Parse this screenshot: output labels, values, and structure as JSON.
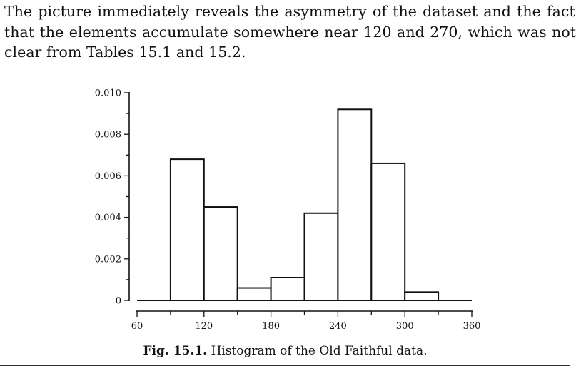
{
  "paragraph": {
    "lines": [
      "The picture immediately reveals the asymmetry of the dataset and the fact",
      "that the elements accumulate somewhere near 120 and 270, which was not",
      "clear from Tables 15.1 and 15.2."
    ]
  },
  "caption": {
    "label": "Fig. 15.1.",
    "text": " Histogram of the Old Faithful data."
  },
  "chart_data": {
    "type": "bar",
    "bin_edges": [
      90,
      120,
      150,
      180,
      210,
      240,
      270,
      300,
      330
    ],
    "values": [
      0.0068,
      0.0045,
      0.0006,
      0.0011,
      0.0042,
      0.0092,
      0.0066,
      0.0004
    ],
    "xlim": [
      60,
      360
    ],
    "ylim": [
      0,
      0.01
    ],
    "x_ticks": [
      60,
      120,
      180,
      240,
      300,
      360
    ],
    "y_ticks": [
      "0",
      "0.002",
      "0.004",
      "0.006",
      "0.008",
      "0.010"
    ],
    "y_tick_values": [
      0,
      0.002,
      0.004,
      0.006,
      0.008,
      0.01
    ],
    "grid": false,
    "legend": "none"
  }
}
